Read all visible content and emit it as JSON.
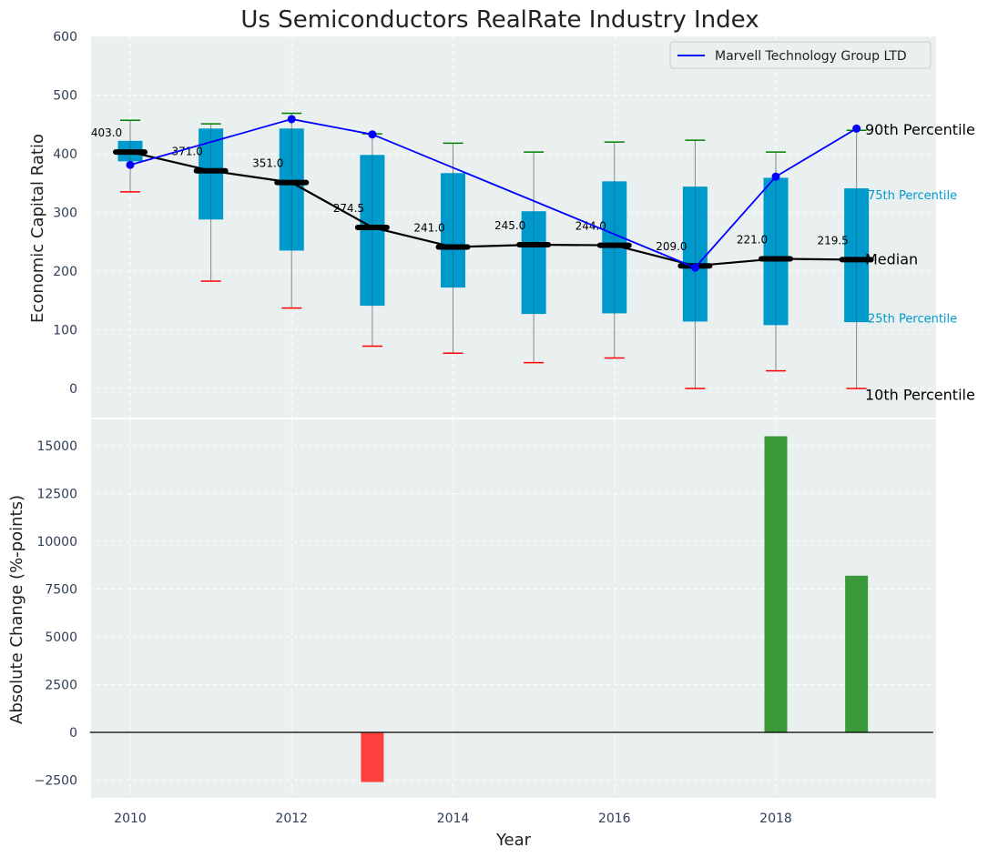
{
  "chart_data": [
    {
      "type": "box",
      "title": "Us Semiconductors RealRate Industry Index",
      "xlabel": "",
      "ylabel": "Economic Capital Ratio",
      "ylim": [
        -50,
        600
      ],
      "yticks": [
        0,
        100,
        200,
        300,
        400,
        500,
        600
      ],
      "ytick_labels": [
        "0",
        "100",
        "200",
        "300",
        "400",
        "500",
        "600"
      ],
      "grid": true,
      "years": [
        2010,
        2011,
        2012,
        2013,
        2014,
        2015,
        2016,
        2017,
        2018,
        2019
      ],
      "p10": [
        335,
        183,
        137,
        72,
        60,
        44,
        52,
        0,
        30,
        0
      ],
      "p25": [
        387,
        288,
        235,
        141,
        172,
        127,
        128,
        114,
        108,
        113
      ],
      "median": [
        403.0,
        371.0,
        351.0,
        274.5,
        241.0,
        245.0,
        244.0,
        209.0,
        221.0,
        219.5
      ],
      "median_labels": [
        "403.0",
        "371.0",
        "351.0",
        "274.5",
        "241.0",
        "245.0",
        "244.0",
        "209.0",
        "221.0",
        "219.5"
      ],
      "p75": [
        422,
        443,
        443,
        398,
        367,
        302,
        353,
        344,
        359,
        341
      ],
      "p90": [
        457,
        451,
        469,
        434,
        418,
        403,
        420,
        423,
        403,
        440
      ],
      "series": [
        {
          "name": "Marvell Technology Group LTD",
          "color": "#0000ff",
          "x": [
            2010,
            2012,
            2013,
            2017,
            2018,
            2019
          ],
          "values": [
            381,
            459,
            433,
            206,
            361,
            443
          ]
        }
      ],
      "legend": {
        "entries": [
          "Marvell Technology Group LTD"
        ],
        "position": "top-right"
      },
      "annotations": [
        {
          "text": "90th Percentile",
          "y": 440,
          "color": "#000000"
        },
        {
          "text": "75th Percentile",
          "y": 330,
          "color": "#0099cc"
        },
        {
          "text": "Median",
          "y": 219.5,
          "color": "#000000"
        },
        {
          "text": "25th Percentile",
          "y": 120,
          "color": "#0099cc"
        },
        {
          "text": "10th Percentile",
          "y": -12,
          "color": "#000000"
        }
      ],
      "colors": {
        "box": "#0099cc",
        "median": "#000000",
        "p90_cap": "#008000",
        "p10_cap": "#ff0000",
        "whisker": "#888888",
        "panel_bg": "#eaeff0"
      }
    },
    {
      "type": "bar",
      "title": "",
      "xlabel": "Year",
      "ylabel": "Absolute Change (%-points)",
      "ylim": [
        -3500,
        16500
      ],
      "yticks": [
        -2500,
        0,
        2500,
        5000,
        7500,
        10000,
        12500,
        15000
      ],
      "ytick_labels": [
        "−2500",
        "0",
        "2500",
        "5000",
        "7500",
        "10000",
        "12500",
        "15000"
      ],
      "xticks": [
        2010,
        2012,
        2014,
        2016,
        2018
      ],
      "xtick_labels": [
        "2010",
        "2012",
        "2014",
        "2016",
        "2018"
      ],
      "xlim": [
        2009.5,
        2019.95
      ],
      "grid": true,
      "categories": [
        2013,
        2018,
        2019
      ],
      "values": [
        -2600,
        15500,
        8200
      ],
      "colors": {
        "positive": "#3a9a3a",
        "negative": "#ff4040",
        "zero_line": "#000000"
      }
    }
  ]
}
